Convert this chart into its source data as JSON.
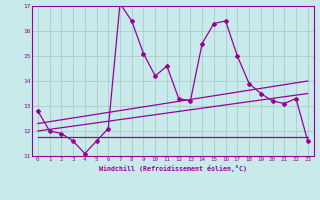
{
  "xlabel": "Windchill (Refroidissement éolien,°C)",
  "bg_color": "#c8eaea",
  "line_color": "#990099",
  "grid_color": "#aacccc",
  "xlim": [
    -0.5,
    23.5
  ],
  "ylim": [
    11,
    17
  ],
  "xticks": [
    0,
    1,
    2,
    3,
    4,
    5,
    6,
    7,
    8,
    9,
    10,
    11,
    12,
    13,
    14,
    15,
    16,
    17,
    18,
    19,
    20,
    21,
    22,
    23
  ],
  "yticks": [
    11,
    12,
    13,
    14,
    15,
    16,
    17
  ],
  "series1_x": [
    0,
    1,
    2,
    3,
    4,
    5,
    6,
    7,
    8,
    9,
    10,
    11,
    12,
    13,
    14,
    15,
    16,
    17,
    18,
    19,
    20,
    21,
    22,
    23
  ],
  "series1_y": [
    12.8,
    12.0,
    11.9,
    11.6,
    11.1,
    11.6,
    12.1,
    17.1,
    16.4,
    15.1,
    14.2,
    14.6,
    13.3,
    13.2,
    15.5,
    16.3,
    16.4,
    15.0,
    13.9,
    13.5,
    13.2,
    13.1,
    13.3,
    11.6
  ],
  "series2_x": [
    0,
    23
  ],
  "series2_y": [
    11.75,
    11.75
  ],
  "series3_x": [
    0,
    23
  ],
  "series3_y": [
    12.0,
    13.5
  ],
  "series4_x": [
    0,
    23
  ],
  "series4_y": [
    12.3,
    14.0
  ]
}
